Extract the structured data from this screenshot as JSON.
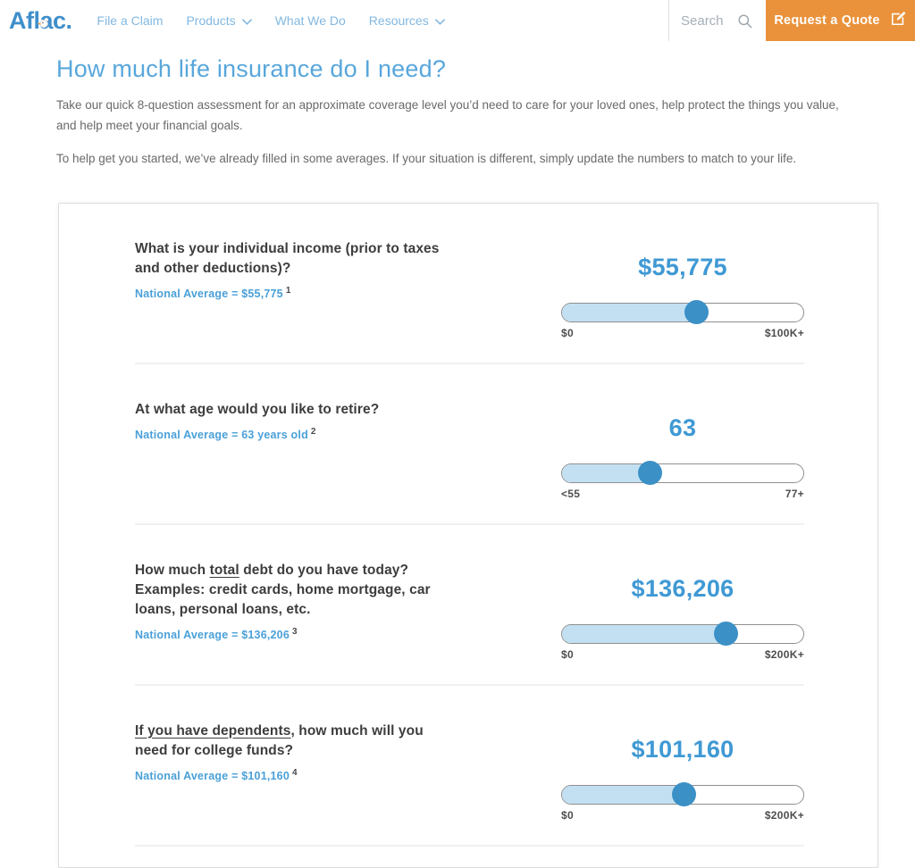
{
  "colors": {
    "brand_blue": "#3F8FCB",
    "nav_link_blue": "#82B8E1",
    "title_blue": "#58A7DC",
    "value_blue": "#3F99D4",
    "average_blue": "#4AA0D8",
    "slider_fill_blue": "#C3E0F2",
    "slider_handle_blue": "#3B90C6",
    "quote_button_orange": "#E9923B"
  },
  "header": {
    "logo_text": "Aflac.",
    "nav_items": [
      {
        "label": "File a Claim",
        "has_dropdown": false
      },
      {
        "label": "Products",
        "has_dropdown": true
      },
      {
        "label": "What We Do",
        "has_dropdown": false
      },
      {
        "label": "Resources",
        "has_dropdown": true
      }
    ],
    "search": {
      "placeholder": "Search"
    },
    "quote_button": {
      "label": "Request a Quote"
    }
  },
  "page": {
    "title": "How much life insurance do I need?",
    "intro_paragraphs": [
      "Take our quick 8-question assessment for an approximate coverage level you’d need to care for your loved ones, help protect the things you value, and help meet your financial goals.",
      "To help get you started, we’ve already filled in some averages. If your situation is different, simply update the numbers to match to your life."
    ]
  },
  "questions": [
    {
      "question_parts": [
        {
          "t": "What is your individual income (prior to taxes and other deductions)?",
          "u": false
        }
      ],
      "average_text": "National Average = $55,775",
      "footnote": "1",
      "value": "$55,775",
      "slider": {
        "percent": 55.8,
        "min_label": "$0",
        "max_label": "$100K+"
      }
    },
    {
      "question_parts": [
        {
          "t": "At what age would you like to retire?",
          "u": false
        }
      ],
      "average_text": "National Average = 63 years old",
      "footnote": "2",
      "value": "63",
      "slider": {
        "percent": 36.4,
        "min_label": "<55",
        "max_label": "77+"
      }
    },
    {
      "question_parts": [
        {
          "t": "How much ",
          "u": false
        },
        {
          "t": "total",
          "u": true
        },
        {
          "t": " debt do you have today? Examples: credit cards, home mortgage, car loans, personal loans, etc.",
          "u": false
        }
      ],
      "average_text": "National Average = $136,206",
      "footnote": "3",
      "value": "$136,206",
      "slider": {
        "percent": 68.1,
        "min_label": "$0",
        "max_label": "$200K+"
      }
    },
    {
      "question_parts": [
        {
          "t": "If you have dependents",
          "u": true
        },
        {
          "t": ", how much will you need for college funds?",
          "u": false
        }
      ],
      "average_text": "National Average = $101,160",
      "footnote": "4",
      "value": "$101,160",
      "slider": {
        "percent": 50.6,
        "min_label": "$0",
        "max_label": "$200K+"
      }
    }
  ]
}
